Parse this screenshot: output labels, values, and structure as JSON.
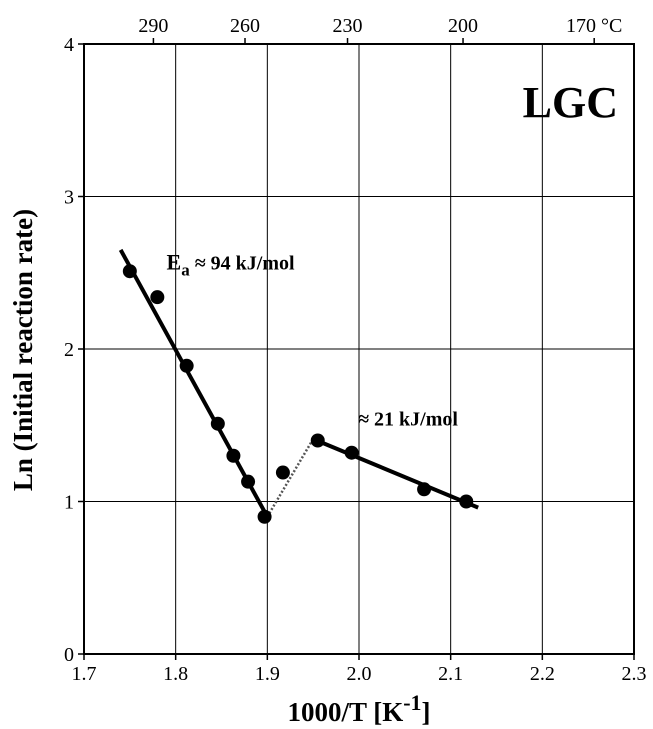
{
  "chart_data": {
    "type": "scatter",
    "title": "",
    "panel_label": "LGC",
    "xlabel": "1000/T [K",
    "xlabel_sup": "-1",
    "xlabel_end": "]",
    "ylabel": "Ln (Initial reaction rate)",
    "xlim": [
      1.7,
      2.3
    ],
    "ylim": [
      0,
      4
    ],
    "grid": true,
    "x_ticks": [
      1.7,
      1.8,
      1.9,
      2.0,
      2.1,
      2.2,
      2.3
    ],
    "x_tick_labels": [
      "1.7",
      "1.8",
      "1.9",
      "2.0",
      "2.1",
      "2.2",
      "2.3"
    ],
    "y_ticks": [
      0,
      1,
      2,
      3,
      4
    ],
    "y_tick_labels": [
      "0",
      "1",
      "2",
      "3",
      "4"
    ],
    "top_axis": {
      "unit": "°C",
      "ticks_celsius": [
        290,
        260,
        230,
        200,
        170
      ],
      "tick_labels": [
        "290",
        "260",
        "230",
        "200",
        "170 °C"
      ]
    },
    "points": [
      {
        "x": 1.75,
        "y": 2.51
      },
      {
        "x": 1.78,
        "y": 2.34
      },
      {
        "x": 1.812,
        "y": 1.89
      },
      {
        "x": 1.846,
        "y": 1.51
      },
      {
        "x": 1.863,
        "y": 1.3
      },
      {
        "x": 1.879,
        "y": 1.13
      },
      {
        "x": 1.897,
        "y": 0.9
      },
      {
        "x": 1.917,
        "y": 1.19
      },
      {
        "x": 1.955,
        "y": 1.4
      },
      {
        "x": 1.992,
        "y": 1.32
      },
      {
        "x": 2.071,
        "y": 1.08
      },
      {
        "x": 2.117,
        "y": 1.0
      }
    ],
    "fit_lines": [
      {
        "from": [
          1.74,
          2.65
        ],
        "to": [
          1.9,
          0.9
        ],
        "style": "solid"
      },
      {
        "from": [
          1.95,
          1.41
        ],
        "to": [
          2.13,
          0.96
        ],
        "style": "solid"
      },
      {
        "from": [
          1.9,
          0.9
        ],
        "to": [
          1.95,
          1.41
        ],
        "style": "dotted"
      }
    ],
    "annotations": [
      {
        "text_main": "E",
        "text_sub": "a",
        "text_rest": " ≈ 94 kJ/mol",
        "x": 1.79,
        "y": 2.52
      },
      {
        "text_main": "",
        "text_sub": "",
        "text_rest": "≈ 21 kJ/mol",
        "x": 1.999,
        "y": 1.5
      }
    ]
  }
}
